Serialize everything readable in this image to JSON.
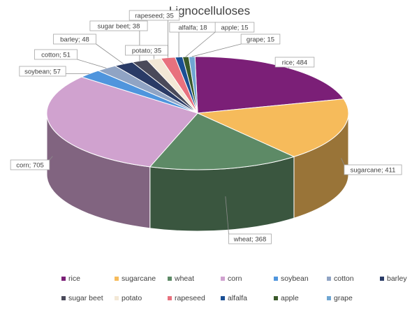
{
  "chart_data": {
    "type": "pie",
    "style": "3d",
    "title": "Lignocelluloses",
    "legend_position": "bottom",
    "label_format": "category; value",
    "slices": [
      {
        "name": "rice",
        "value": 484,
        "color": "#7b1f77"
      },
      {
        "name": "sugarcane",
        "value": 411,
        "color": "#f6bb5b"
      },
      {
        "name": "wheat",
        "value": 368,
        "color": "#5d8a66"
      },
      {
        "name": "corn",
        "value": 705,
        "color": "#d0a2cf"
      },
      {
        "name": "soybean",
        "value": 57,
        "color": "#4f95dd"
      },
      {
        "name": "cotton",
        "value": 51,
        "color": "#90a4c4"
      },
      {
        "name": "barley",
        "value": 48,
        "color": "#2a3b66"
      },
      {
        "name": "sugar beet",
        "value": 38,
        "color": "#4a4a5a"
      },
      {
        "name": "potato",
        "value": 35,
        "color": "#f3e8d6"
      },
      {
        "name": "rapeseed",
        "value": 35,
        "color": "#e8717e"
      },
      {
        "name": "alfalfa",
        "value": 18,
        "color": "#1a4f94"
      },
      {
        "name": "apple",
        "value": 15,
        "color": "#3a5a2a"
      },
      {
        "name": "grape",
        "value": 15,
        "color": "#6fa6d2"
      }
    ]
  }
}
